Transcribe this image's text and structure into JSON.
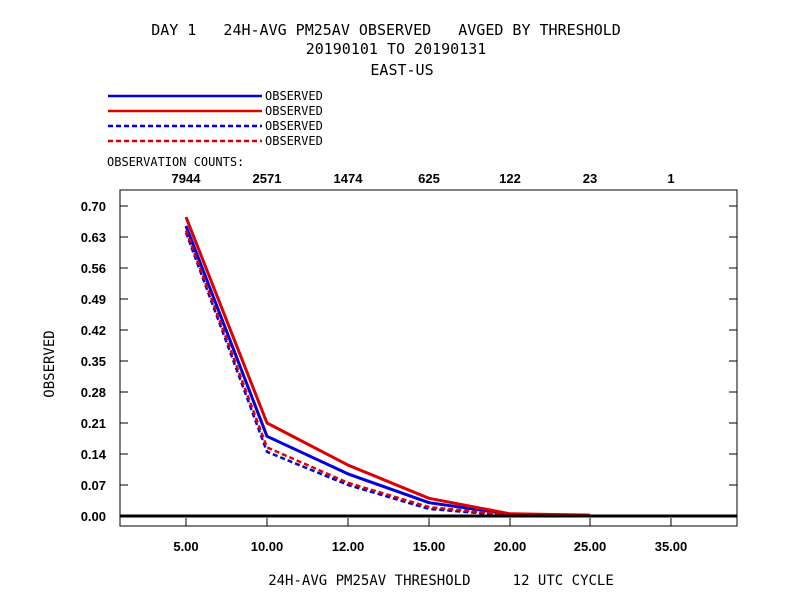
{
  "header": {
    "title_line1": "DAY 1   24H-AVG PM25AV OBSERVED   AVGED BY THRESHOLD",
    "title_line2": "20190101 TO 20190131",
    "title_line3": "EAST-US"
  },
  "legend": {
    "entries": [
      {
        "label": "OBSERVED",
        "color": "#0000dd",
        "style": "solid"
      },
      {
        "label": "OBSERVED",
        "color": "#dd0000",
        "style": "solid"
      },
      {
        "label": "OBSERVED",
        "color": "#0000dd",
        "style": "dashed"
      },
      {
        "label": "OBSERVED",
        "color": "#dd0000",
        "style": "dashed"
      }
    ]
  },
  "counts": {
    "label": "OBSERVATION COUNTS:",
    "values": [
      "7944",
      "2571",
      "1474",
      "625",
      "122",
      "23",
      "1"
    ]
  },
  "chart_data": {
    "type": "line",
    "categories": [
      "5.00",
      "10.00",
      "12.00",
      "15.00",
      "20.00",
      "25.00",
      "35.00"
    ],
    "ylabel": "OBSERVED",
    "xlabel": "24H-AVG PM25AV THRESHOLD     12 UTC CYCLE",
    "ylim": [
      0.0,
      0.72
    ],
    "yticks": [
      "0.00",
      "0.07",
      "0.14",
      "0.21",
      "0.28",
      "0.35",
      "0.42",
      "0.49",
      "0.56",
      "0.63",
      "0.70"
    ],
    "series": [
      {
        "name": "OBSERVED",
        "color": "#0000dd",
        "style": "solid",
        "values": [
          0.655,
          0.18,
          0.095,
          0.03,
          0.004,
          0.0,
          null
        ]
      },
      {
        "name": "OBSERVED",
        "color": "#dd0000",
        "style": "solid",
        "values": [
          0.675,
          0.21,
          0.115,
          0.04,
          0.005,
          0.002,
          null
        ]
      },
      {
        "name": "OBSERVED",
        "color": "#0000dd",
        "style": "dashed",
        "values": [
          0.64,
          0.145,
          0.07,
          0.016,
          0.001,
          0.0,
          null
        ]
      },
      {
        "name": "OBSERVED",
        "color": "#dd0000",
        "style": "dashed",
        "values": [
          0.645,
          0.155,
          0.075,
          0.02,
          0.002,
          0.0,
          null
        ]
      }
    ]
  }
}
